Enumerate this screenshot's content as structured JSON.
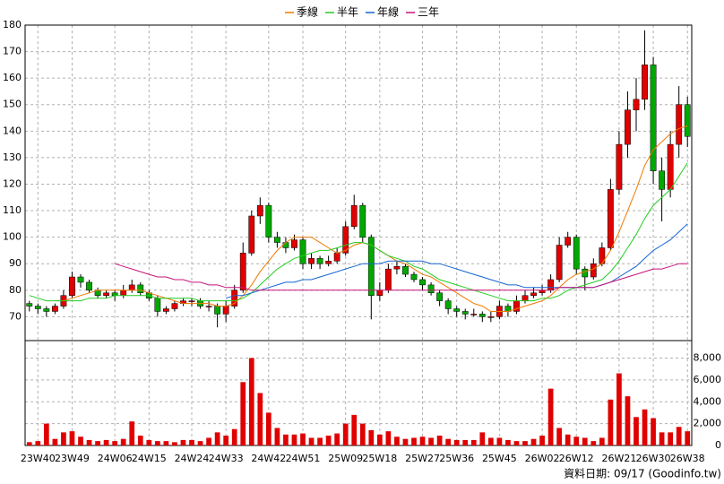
{
  "chart_data": [
    {
      "type": "candlestick",
      "categories": [
        null,
        "23W40",
        null,
        null,
        null,
        "23W49",
        null,
        null,
        null,
        null,
        "24W06",
        null,
        null,
        null,
        "24W15",
        null,
        null,
        null,
        null,
        "24W24",
        null,
        null,
        null,
        "24W33",
        null,
        null,
        null,
        null,
        "24W42",
        null,
        null,
        null,
        "24W51",
        null,
        null,
        null,
        null,
        "25W09",
        null,
        null,
        null,
        "25W18",
        null,
        null,
        null,
        null,
        "25W27",
        null,
        null,
        null,
        "25W36",
        null,
        null,
        null,
        null,
        "25W45",
        null,
        null,
        null,
        null,
        "26W02",
        null,
        null,
        null,
        "26W12",
        null,
        null,
        null,
        null,
        "26W21",
        null,
        null,
        null,
        "26W30",
        null,
        null,
        null,
        "26W38"
      ],
      "open": [
        75,
        74,
        73,
        72,
        74,
        78,
        85,
        83,
        80,
        78,
        79,
        78,
        80,
        82,
        79,
        77,
        72,
        73,
        75,
        76,
        76,
        74,
        74,
        71,
        74,
        80,
        94,
        108,
        112,
        100,
        98,
        96,
        99,
        90,
        92,
        90,
        91,
        94,
        104,
        112,
        100,
        78,
        80,
        88,
        89,
        86,
        84,
        82,
        79,
        76,
        73,
        72,
        71,
        71,
        70,
        70,
        74,
        72,
        76,
        78,
        79,
        80,
        84,
        97,
        100,
        88,
        85,
        90,
        96,
        118,
        135,
        148,
        152,
        165,
        125,
        118,
        135,
        150
      ],
      "high": [
        76,
        75,
        74,
        75,
        80,
        87,
        86,
        84,
        81,
        80,
        80,
        82,
        84,
        83,
        80,
        78,
        74,
        76,
        77,
        77,
        77,
        76,
        75,
        76,
        82,
        98,
        110,
        115,
        113,
        102,
        100,
        101,
        100,
        94,
        93,
        93,
        96,
        106,
        116,
        113,
        101,
        83,
        90,
        91,
        90,
        87,
        85,
        83,
        80,
        77,
        74,
        73,
        73,
        72,
        72,
        76,
        75,
        78,
        80,
        81,
        82,
        86,
        100,
        102,
        101,
        89,
        92,
        98,
        122,
        140,
        155,
        160,
        178,
        168,
        130,
        140,
        157,
        153
      ],
      "low": [
        72,
        71,
        70,
        71,
        73,
        77,
        81,
        79,
        77,
        77,
        76,
        77,
        79,
        78,
        76,
        70,
        71,
        72,
        74,
        74,
        73,
        72,
        66,
        68,
        73,
        79,
        93,
        105,
        98,
        96,
        94,
        95,
        88,
        88,
        88,
        89,
        90,
        93,
        103,
        98,
        69,
        76,
        79,
        86,
        85,
        83,
        80,
        78,
        74,
        71,
        70,
        69,
        70,
        68,
        68,
        69,
        70,
        71,
        75,
        77,
        78,
        79,
        83,
        96,
        86,
        80,
        84,
        89,
        95,
        116,
        130,
        140,
        148,
        120,
        106,
        115,
        130,
        134
      ],
      "close": [
        74,
        73,
        72,
        74,
        78,
        85,
        83,
        80,
        78,
        79,
        78,
        80,
        82,
        79,
        77,
        72,
        73,
        75,
        76,
        76,
        74,
        74,
        71,
        74,
        80,
        94,
        108,
        112,
        100,
        98,
        96,
        99,
        90,
        92,
        90,
        91,
        94,
        104,
        112,
        100,
        78,
        80,
        88,
        89,
        86,
        84,
        82,
        79,
        76,
        73,
        72,
        71,
        71,
        70,
        70,
        74,
        72,
        76,
        78,
        79,
        80,
        84,
        97,
        100,
        88,
        85,
        90,
        96,
        118,
        135,
        148,
        152,
        165,
        125,
        118,
        135,
        150,
        138
      ],
      "up_color": "#e00000",
      "down_color": "#00a800",
      "wick_color": "#000000",
      "series": [
        {
          "name": "季線",
          "color": "#f07800",
          "values": [
            null,
            null,
            null,
            76,
            76,
            77,
            78,
            79,
            80,
            80,
            80,
            80,
            80,
            80,
            79,
            78,
            77,
            76,
            75,
            75,
            75,
            75,
            74,
            74,
            75,
            78,
            82,
            87,
            91,
            95,
            98,
            100,
            100,
            100,
            98,
            96,
            94,
            95,
            97,
            98,
            97,
            95,
            93,
            91,
            90,
            88,
            86,
            85,
            83,
            81,
            79,
            77,
            75,
            74,
            72,
            72,
            72,
            73,
            74,
            75,
            76,
            78,
            81,
            84,
            86,
            87,
            88,
            90,
            95,
            102,
            110,
            118,
            127,
            133,
            136,
            139,
            141,
            142
          ]
        },
        {
          "name": "半年",
          "color": "#22cc22",
          "values": [
            78,
            77,
            76,
            76,
            76,
            76,
            76,
            77,
            77,
            77,
            78,
            78,
            78,
            78,
            78,
            77,
            77,
            77,
            77,
            77,
            76,
            76,
            76,
            76,
            76,
            77,
            79,
            82,
            85,
            88,
            90,
            92,
            93,
            94,
            95,
            95,
            96,
            97,
            98,
            98,
            97,
            95,
            93,
            92,
            91,
            89,
            88,
            86,
            84,
            83,
            82,
            81,
            80,
            79,
            78,
            77,
            76,
            76,
            76,
            76,
            77,
            77,
            78,
            80,
            81,
            82,
            83,
            84,
            87,
            91,
            96,
            101,
            107,
            112,
            115,
            118,
            123,
            128
          ]
        },
        {
          "name": "年線",
          "color": "#1464d2",
          "values": [
            null,
            null,
            null,
            null,
            null,
            null,
            null,
            null,
            null,
            null,
            null,
            null,
            null,
            null,
            null,
            null,
            null,
            null,
            null,
            null,
            null,
            null,
            null,
            77,
            78,
            78,
            79,
            80,
            81,
            82,
            83,
            83,
            84,
            84,
            85,
            86,
            87,
            88,
            89,
            90,
            90,
            90,
            91,
            91,
            91,
            91,
            91,
            90,
            90,
            89,
            88,
            87,
            86,
            85,
            84,
            83,
            82,
            82,
            81,
            81,
            81,
            81,
            81,
            81,
            81,
            81,
            81,
            82,
            83,
            85,
            87,
            89,
            92,
            95,
            97,
            99,
            102,
            105
          ]
        },
        {
          "name": "三年",
          "color": "#c8147a",
          "values": [
            null,
            null,
            null,
            null,
            null,
            null,
            null,
            null,
            null,
            null,
            90,
            89,
            88,
            87,
            86,
            85,
            85,
            84,
            84,
            83,
            83,
            82,
            82,
            81,
            81,
            81,
            80,
            80,
            80,
            80,
            80,
            80,
            80,
            80,
            80,
            80,
            80,
            80,
            80,
            80,
            80,
            80,
            80,
            80,
            80,
            80,
            80,
            80,
            80,
            80,
            80,
            80,
            80,
            80,
            80,
            80,
            80,
            80,
            80,
            80,
            80,
            80,
            81,
            81,
            81,
            81,
            81,
            82,
            83,
            84,
            85,
            86,
            87,
            88,
            88,
            89,
            90,
            90
          ]
        }
      ],
      "ylim": [
        61,
        180
      ],
      "yticks": [
        70,
        80,
        90,
        100,
        110,
        120,
        130,
        140,
        150,
        160,
        170,
        180
      ],
      "grid": true
    },
    {
      "type": "bar",
      "color": "#e00000",
      "values": [
        300,
        400,
        2000,
        600,
        1200,
        1300,
        800,
        500,
        400,
        500,
        400,
        600,
        2200,
        900,
        500,
        400,
        400,
        300,
        500,
        500,
        400,
        700,
        1200,
        900,
        1500,
        5800,
        8000,
        4800,
        3000,
        1600,
        1000,
        1000,
        1100,
        700,
        700,
        900,
        1100,
        2000,
        2800,
        2000,
        1400,
        1000,
        1300,
        800,
        600,
        700,
        800,
        700,
        900,
        600,
        500,
        500,
        500,
        1200,
        700,
        700,
        500,
        400,
        400,
        600,
        900,
        5200,
        1600,
        1000,
        800,
        700,
        400,
        700,
        4200,
        6600,
        4500,
        2600,
        3300,
        2500,
        1200,
        1200,
        1700,
        1300
      ],
      "ylim": [
        0,
        9600
      ],
      "yticks": [
        0,
        {
          "value": 2000,
          "label": "2,000"
        },
        {
          "value": 4000,
          "label": "4,000"
        },
        {
          "value": 6000,
          "label": "6,000"
        },
        {
          "value": 8000,
          "label": "8,000"
        }
      ],
      "grid": true,
      "note": "資料日期: 09/17  (Goodinfo.tw)"
    }
  ]
}
